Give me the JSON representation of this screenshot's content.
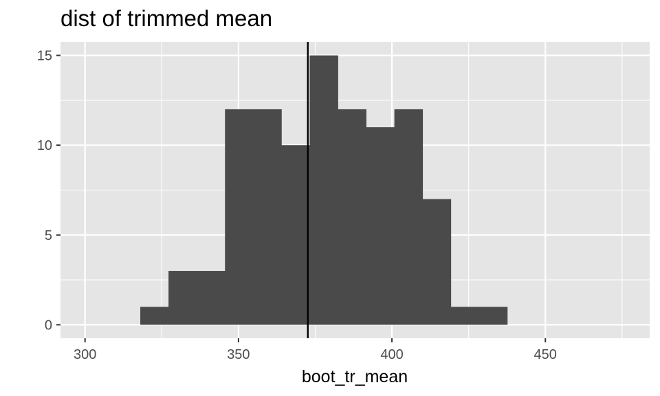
{
  "chart_data": {
    "type": "histogram",
    "title": "dist of trimmed mean",
    "xlabel": "boot_tr_mean",
    "ylabel": "",
    "xlim": [
      292,
      484
    ],
    "ylim": [
      -0.75,
      15.75
    ],
    "x_ticks": [
      300,
      350,
      400,
      450
    ],
    "x_minor": [
      325,
      375,
      425,
      475
    ],
    "y_ticks": [
      0,
      5,
      10,
      15
    ],
    "y_minor": [
      2.5,
      7.5,
      12.5
    ],
    "grid": true,
    "bin_width": 9.2,
    "bins": [
      {
        "x0": 318.0,
        "x1": 327.2,
        "count": 1
      },
      {
        "x0": 327.2,
        "x1": 336.4,
        "count": 3
      },
      {
        "x0": 336.4,
        "x1": 345.6,
        "count": 3
      },
      {
        "x0": 345.6,
        "x1": 354.8,
        "count": 12
      },
      {
        "x0": 354.8,
        "x1": 364.0,
        "count": 12
      },
      {
        "x0": 364.0,
        "x1": 373.2,
        "count": 10
      },
      {
        "x0": 373.2,
        "x1": 382.4,
        "count": 15
      },
      {
        "x0": 382.4,
        "x1": 391.6,
        "count": 12
      },
      {
        "x0": 391.6,
        "x1": 400.8,
        "count": 11
      },
      {
        "x0": 400.8,
        "x1": 410.0,
        "count": 12
      },
      {
        "x0": 410.0,
        "x1": 419.2,
        "count": 7
      },
      {
        "x0": 419.2,
        "x1": 428.4,
        "count": 1
      },
      {
        "x0": 428.4,
        "x1": 437.6,
        "count": 1
      }
    ],
    "vline": {
      "x": 372.6
    },
    "colors": {
      "panel": "#e5e5e5",
      "grid": "#ffffff",
      "bar": "#4a4a4a",
      "vline": "#000000",
      "tick_text": "#4d4d4d",
      "tick_mark": "#333333"
    }
  }
}
